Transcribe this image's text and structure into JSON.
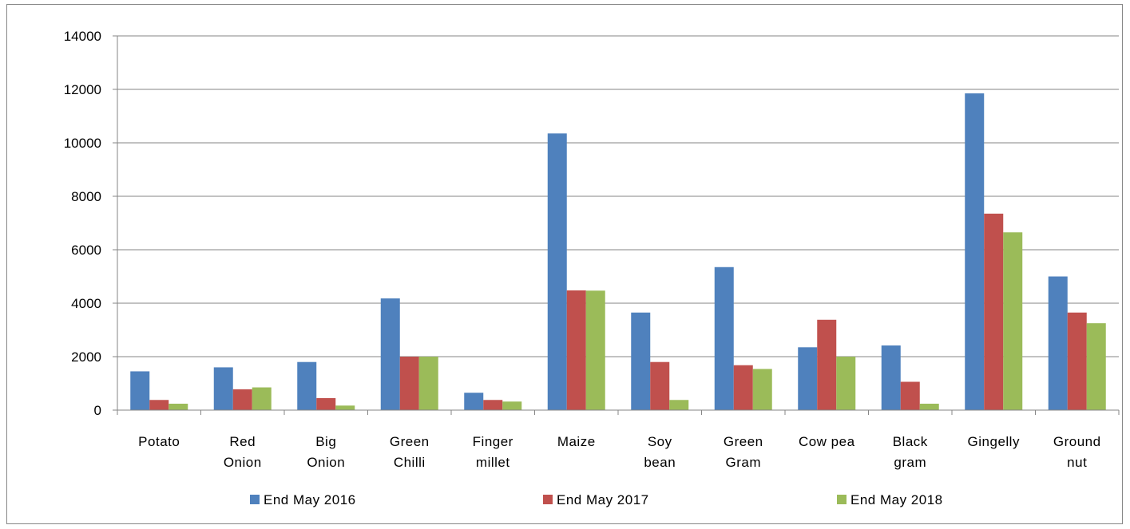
{
  "chart_data": {
    "type": "bar",
    "title": "",
    "xlabel": "",
    "ylabel": "",
    "ylim": [
      0,
      14000
    ],
    "yticks": [
      0,
      2000,
      4000,
      6000,
      8000,
      10000,
      12000,
      14000
    ],
    "grid": true,
    "legend_position": "bottom",
    "categories": [
      [
        "Potato"
      ],
      [
        "Red",
        "Onion"
      ],
      [
        "Big",
        "Onion"
      ],
      [
        "Green",
        "Chilli"
      ],
      [
        "Finger",
        "millet"
      ],
      [
        "Maize"
      ],
      [
        "Soy",
        "bean"
      ],
      [
        "Green",
        "Gram"
      ],
      [
        "Cow pea"
      ],
      [
        "Black",
        "gram"
      ],
      [
        "Gingelly"
      ],
      [
        "Ground",
        "nut"
      ]
    ],
    "series": [
      {
        "name": "End May 2016",
        "color": "#4F81BD",
        "values": [
          1450,
          1600,
          1800,
          4180,
          650,
          10350,
          3650,
          5350,
          2350,
          2420,
          11850,
          5000
        ]
      },
      {
        "name": "End May 2017",
        "color": "#C0504D",
        "values": [
          380,
          780,
          450,
          2000,
          380,
          4480,
          1800,
          1680,
          3380,
          1060,
          7350,
          3650
        ]
      },
      {
        "name": "End May 2018",
        "color": "#9BBB59",
        "values": [
          240,
          850,
          170,
          2000,
          320,
          4470,
          380,
          1540,
          2000,
          240,
          6650,
          3250
        ]
      }
    ]
  }
}
